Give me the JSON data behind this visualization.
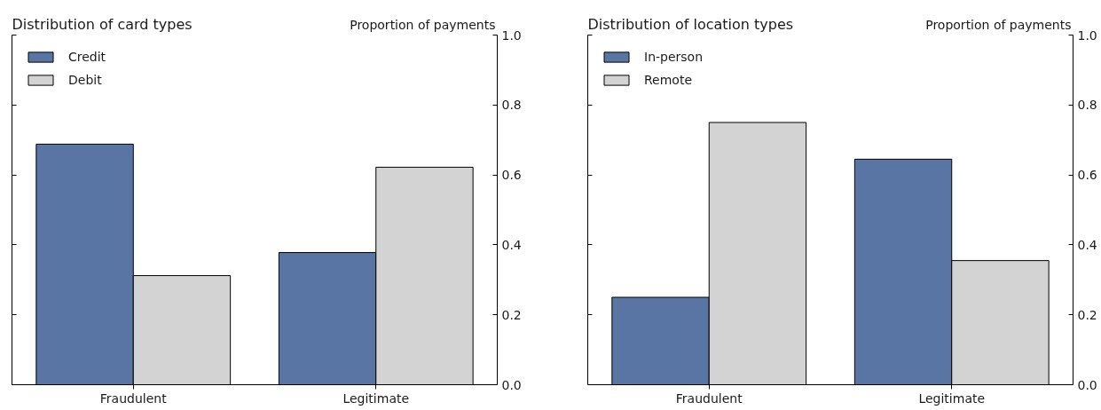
{
  "chart_data": [
    {
      "type": "bar",
      "title": "Distribution of card types",
      "ylabel": "Proportion of payments",
      "categories": [
        "Fraudulent",
        "Legitimate"
      ],
      "series": [
        {
          "name": "Credit",
          "color": "#5975a4",
          "values": [
            0.688,
            0.378
          ]
        },
        {
          "name": "Debit",
          "color": "#d3d3d3",
          "values": [
            0.312,
            0.622
          ]
        }
      ],
      "ylim": [
        0,
        1
      ],
      "yticks": [
        {
          "value": 0,
          "label": "0.0"
        },
        {
          "value": 0.2,
          "label": "0.2"
        },
        {
          "value": 0.4,
          "label": "0.4"
        },
        {
          "value": 0.6,
          "label": "0.6"
        },
        {
          "value": 0.8,
          "label": "0.8"
        },
        {
          "value": 1,
          "label": "1.0"
        }
      ],
      "legend": "top left"
    },
    {
      "type": "bar",
      "title": "Distribution of location types",
      "ylabel": "Proportion of payments",
      "categories": [
        "Fraudulent",
        "Legitimate"
      ],
      "series": [
        {
          "name": "In-person",
          "color": "#5975a4",
          "values": [
            0.25,
            0.645
          ]
        },
        {
          "name": "Remote",
          "color": "#d3d3d3",
          "values": [
            0.75,
            0.355
          ]
        }
      ],
      "ylim": [
        0,
        1
      ],
      "yticks": [
        {
          "value": 0,
          "label": "0.0"
        },
        {
          "value": 0.2,
          "label": "0.2"
        },
        {
          "value": 0.4,
          "label": "0.4"
        },
        {
          "value": 0.6,
          "label": "0.6"
        },
        {
          "value": 0.8,
          "label": "0.8"
        },
        {
          "value": 1,
          "label": "1.0"
        }
      ],
      "legend": "top left"
    }
  ]
}
